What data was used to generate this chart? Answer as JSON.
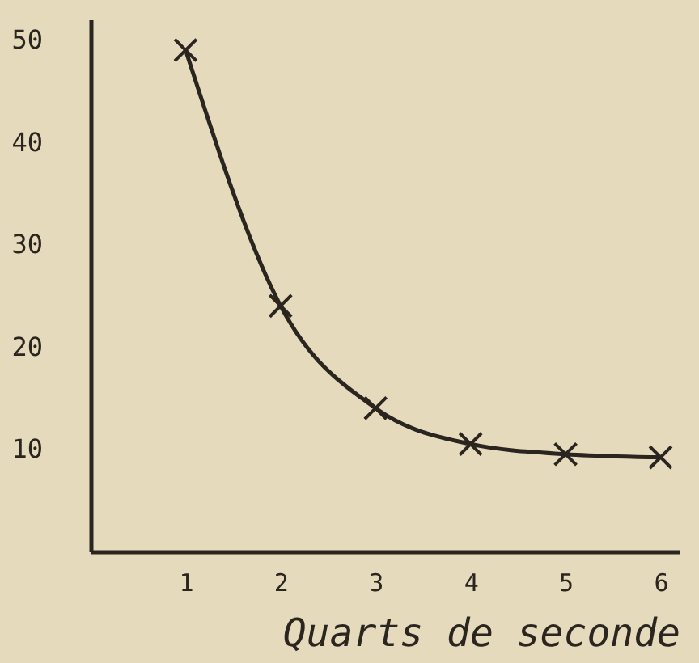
{
  "chart_data": {
    "type": "line",
    "x": [
      1,
      2,
      3,
      4,
      5,
      6
    ],
    "series": [
      {
        "color": "#2b2520",
        "values": [
          49,
          24,
          14,
          10.5,
          9.5,
          9.2
        ]
      }
    ],
    "xlabel": "Quarts de seconde",
    "xlim": [
      0,
      6.2
    ],
    "ylim": [
      0,
      52
    ],
    "xticks": [
      1,
      2,
      3,
      4,
      5,
      6
    ],
    "yticks": [
      10,
      20,
      30,
      40,
      50
    ],
    "marker": "cross",
    "line_style": "solid",
    "grid": false
  }
}
